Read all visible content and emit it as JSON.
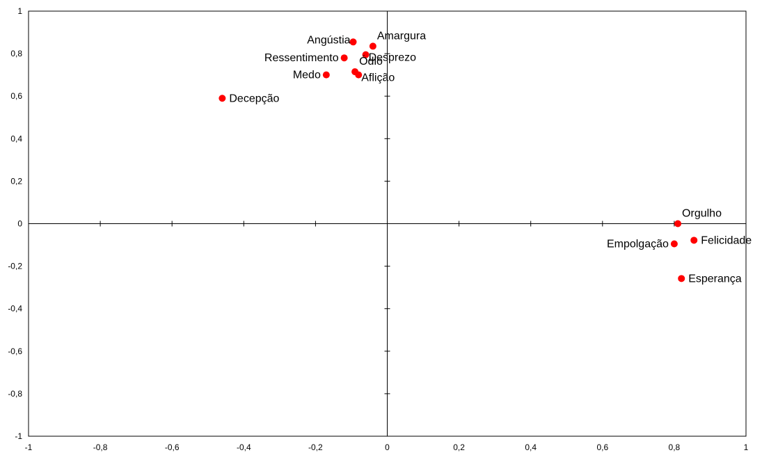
{
  "chart_data": {
    "type": "scatter",
    "title": "",
    "xlabel": "",
    "ylabel": "",
    "xlim": [
      -1,
      1
    ],
    "ylim": [
      -1,
      1
    ],
    "grid": false,
    "point_color": "#ff0000",
    "x_tick_labels": [
      "-1",
      "-0,8",
      "-0,6",
      "-0,4",
      "-0,2",
      "0",
      "0,2",
      "0,4",
      "0,6",
      "0,8",
      "1"
    ],
    "x_tick_values": [
      -1,
      -0.8,
      -0.6,
      -0.4,
      -0.2,
      0,
      0.2,
      0.4,
      0.6,
      0.8,
      1
    ],
    "y_tick_labels": [
      "1",
      "0,8",
      "0,6",
      "0,4",
      "0,2",
      "0",
      "-0,2",
      "-0,4",
      "-0,6",
      "-0,8",
      "-1"
    ],
    "y_tick_values": [
      1,
      0.8,
      0.6,
      0.4,
      0.2,
      0,
      -0.2,
      -0.4,
      -0.6,
      -0.8,
      -1
    ],
    "points": [
      {
        "label": "Angústia",
        "x": -0.095,
        "y": 0.855,
        "label_pos": "left-above"
      },
      {
        "label": "Amargura",
        "x": -0.04,
        "y": 0.835,
        "label_pos": "right-above"
      },
      {
        "label": "Ressentimento",
        "x": -0.12,
        "y": 0.78,
        "label_pos": "left"
      },
      {
        "label": "Desprezo",
        "x": -0.06,
        "y": 0.795,
        "label_pos": "right-below"
      },
      {
        "label": "Ódio",
        "x": -0.09,
        "y": 0.715,
        "label_pos": "right-above"
      },
      {
        "label": "Aflição",
        "x": -0.08,
        "y": 0.7,
        "label_pos": "right-below"
      },
      {
        "label": "Medo",
        "x": -0.17,
        "y": 0.7,
        "label_pos": "left"
      },
      {
        "label": "Decepção",
        "x": -0.46,
        "y": 0.59,
        "label_pos": "right"
      },
      {
        "label": "Orgulho",
        "x": 0.81,
        "y": 0.0,
        "label_pos": "right-above"
      },
      {
        "label": "Empolgação",
        "x": 0.8,
        "y": -0.095,
        "label_pos": "left"
      },
      {
        "label": "Felicidade",
        "x": 0.855,
        "y": -0.078,
        "label_pos": "right"
      },
      {
        "label": "Esperança",
        "x": 0.82,
        "y": -0.258,
        "label_pos": "right"
      }
    ]
  }
}
